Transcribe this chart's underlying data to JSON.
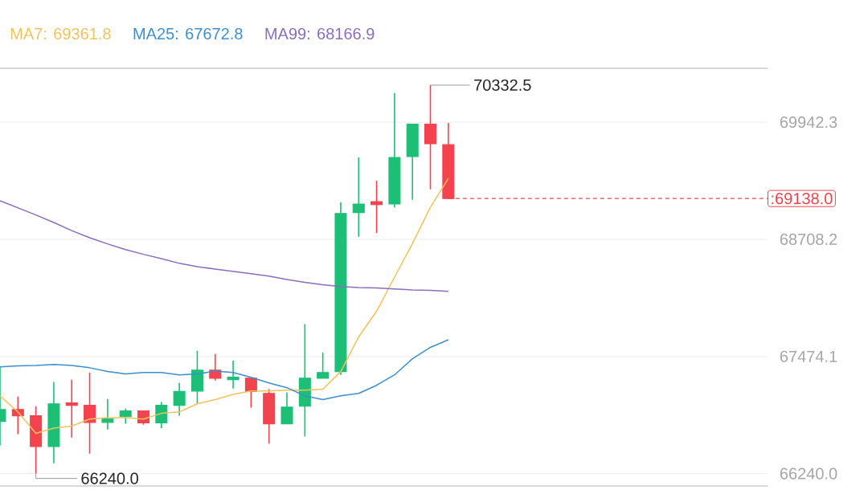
{
  "chart_data": {
    "type": "candlestick",
    "categories": [
      null,
      null,
      null,
      null,
      null,
      null,
      null,
      null,
      null,
      null,
      null,
      null,
      null,
      null,
      null,
      null,
      null,
      null,
      null,
      null,
      null,
      null,
      null,
      null,
      null,
      null
    ],
    "ohlc": [
      [
        66790,
        67365,
        66535,
        66915
      ],
      [
        66915,
        67050,
        66655,
        66850
      ],
      [
        66850,
        66950,
        66240,
        66525
      ],
      [
        66525,
        67205,
        66350,
        66975
      ],
      [
        66985,
        67230,
        66620,
        66960
      ],
      [
        66960,
        67305,
        66450,
        66780
      ],
      [
        66780,
        67025,
        66705,
        66815
      ],
      [
        66840,
        66925,
        66765,
        66900
      ],
      [
        66900,
        66900,
        66755,
        66775
      ],
      [
        66775,
        66995,
        66720,
        66960
      ],
      [
        66960,
        67195,
        66850,
        67105
      ],
      [
        67110,
        67535,
        66975,
        67330
      ],
      [
        67330,
        67500,
        67220,
        67245
      ],
      [
        67230,
        67430,
        67135,
        67255
      ],
      [
        67245,
        67245,
        66935,
        67105
      ],
      [
        67085,
        67130,
        66555,
        66765
      ],
      [
        66765,
        67095,
        66765,
        66940
      ],
      [
        66950,
        67815,
        66630,
        67245
      ],
      [
        67245,
        67515,
        67245,
        67305
      ],
      [
        67315,
        69100,
        67280,
        68980
      ],
      [
        68990,
        69570,
        68735,
        69080
      ],
      [
        69105,
        69325,
        68775,
        69075
      ],
      [
        69080,
        70250,
        69045,
        69570
      ],
      [
        69580,
        69920,
        69125,
        69920
      ],
      [
        69920,
        70332.5,
        69235,
        69715
      ],
      [
        69705,
        69935,
        69138,
        69138
      ]
    ],
    "colors": [
      "#1dbf76",
      "#f2434f",
      "#f2434f",
      "#1dbf76",
      "#f2434f",
      "#f2434f",
      "#1dbf76",
      "#1dbf76",
      "#f2434f",
      "#1dbf76",
      "#1dbf76",
      "#1dbf76",
      "#f2434f",
      "#1dbf76",
      "#f2434f",
      "#f2434f",
      "#1dbf76",
      "#1dbf76",
      "#1dbf76",
      "#1dbf76",
      "#1dbf76",
      "#f2434f",
      "#1dbf76",
      "#1dbf76",
      "#f2434f",
      "#f2434f"
    ],
    "series": [
      {
        "type": "line",
        "name": "MA7: 69361.8",
        "color": "#f0c35a",
        "values": [
          67060,
          66890,
          66665,
          66720,
          66740,
          66815,
          66830,
          66830,
          66815,
          66875,
          66890,
          66975,
          67020,
          67075,
          67110,
          67110,
          67120,
          67120,
          67130,
          67315,
          67680,
          67950,
          68310,
          68665,
          69045,
          69350
        ]
      },
      {
        "type": "line",
        "name": "MA25: 67672.8",
        "color": "#3b8ed0",
        "values": [
          67365,
          67375,
          67380,
          67390,
          67380,
          67355,
          67315,
          67290,
          67305,
          67305,
          67280,
          67290,
          67320,
          67305,
          67255,
          67195,
          67145,
          67060,
          67020,
          67060,
          67085,
          67170,
          67280,
          67450,
          67570,
          67650
        ]
      },
      {
        "type": "line",
        "name": "MA99: 68166.9",
        "color": "#8a6cc0",
        "values": [
          69115,
          69040,
          68965,
          68885,
          68800,
          68725,
          68660,
          68600,
          68550,
          68505,
          68455,
          68420,
          68395,
          68370,
          68345,
          68320,
          68285,
          68255,
          68230,
          68210,
          68200,
          68195,
          68185,
          68175,
          68170,
          68160
        ]
      }
    ],
    "ylim": [
      66110,
      70510
    ],
    "yticks": [
      {
        "value": 66240,
        "label": "66240.0"
      },
      {
        "value": 67474.1,
        "label": "67474.1"
      },
      {
        "value": 68708.2,
        "label": "68708.2"
      },
      {
        "value": 69942.3,
        "label": "69942.3"
      }
    ],
    "ref_lines": [
      {
        "axis": "y",
        "value": 69138.0,
        "label": ":69138.0",
        "color": "#e8474e",
        "line_style": "dashed"
      }
    ],
    "annotations": [
      "70332.5",
      "66240.0"
    ],
    "grid": "y"
  }
}
